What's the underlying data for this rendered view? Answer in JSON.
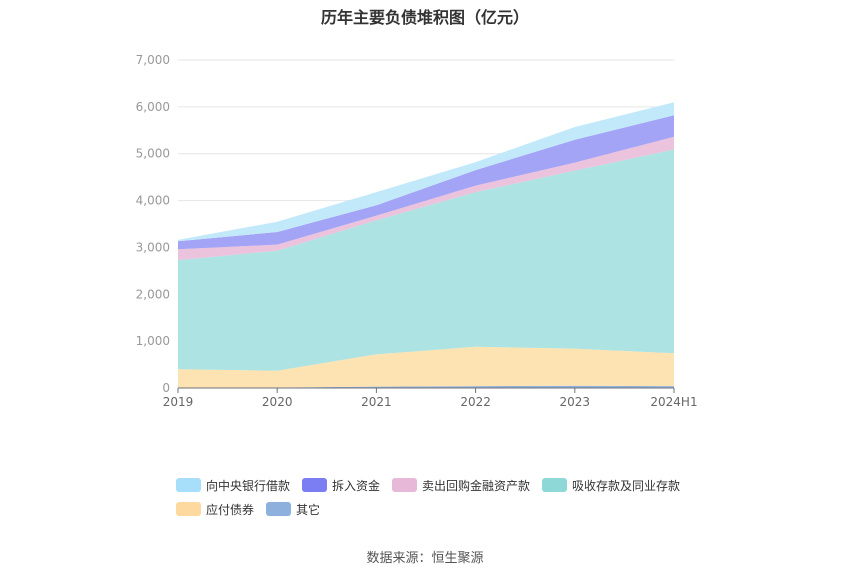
{
  "title": "历年主要负债堆积图（亿元）",
  "source": "数据来源：恒生聚源",
  "chart_data": {
    "type": "area",
    "stacked": true,
    "categories": [
      "2019",
      "2020",
      "2021",
      "2022",
      "2023",
      "2024H1"
    ],
    "ylim": [
      0,
      7000
    ],
    "yticks": [
      0,
      1000,
      2000,
      3000,
      4000,
      5000,
      6000,
      7000
    ],
    "ytick_labels": [
      "0",
      "1,000",
      "2,000",
      "3,000",
      "4,000",
      "5,000",
      "6,000",
      "7,000"
    ],
    "grid": true,
    "legend_position": "bottom",
    "series": [
      {
        "name": "其它",
        "color": "#8eb0dc",
        "values": [
          10,
          10,
          30,
          40,
          50,
          40
        ]
      },
      {
        "name": "应付债券",
        "color": "#fde3b2",
        "values": [
          390,
          360,
          690,
          840,
          790,
          700
        ]
      },
      {
        "name": "吸收存款及同业存款",
        "color": "#ade3e3",
        "values": [
          2330,
          2560,
          2860,
          3300,
          3800,
          4350
        ]
      },
      {
        "name": "卖出回购金融资产款",
        "color": "#ebc3dd",
        "values": [
          230,
          130,
          100,
          140,
          170,
          270
        ]
      },
      {
        "name": "拆入资金",
        "color": "#a3a4f6",
        "values": [
          170,
          270,
          220,
          330,
          490,
          460
        ]
      },
      {
        "name": "向中央银行借款",
        "color": "#c2e9fa",
        "values": [
          30,
          220,
          280,
          170,
          270,
          280
        ]
      }
    ],
    "legend_rows": [
      [
        {
          "name": "向中央银行借款",
          "color": "#a7defa"
        },
        {
          "name": "拆入资金",
          "color": "#7b7ef2"
        },
        {
          "name": "卖出回购金融资产款",
          "color": "#e8b8d8"
        },
        {
          "name": "吸收存款及同业存款",
          "color": "#8ed8d8"
        }
      ],
      [
        {
          "name": "应付债券",
          "color": "#fdd9a0"
        },
        {
          "name": "其它",
          "color": "#8eb0dc"
        }
      ]
    ]
  }
}
